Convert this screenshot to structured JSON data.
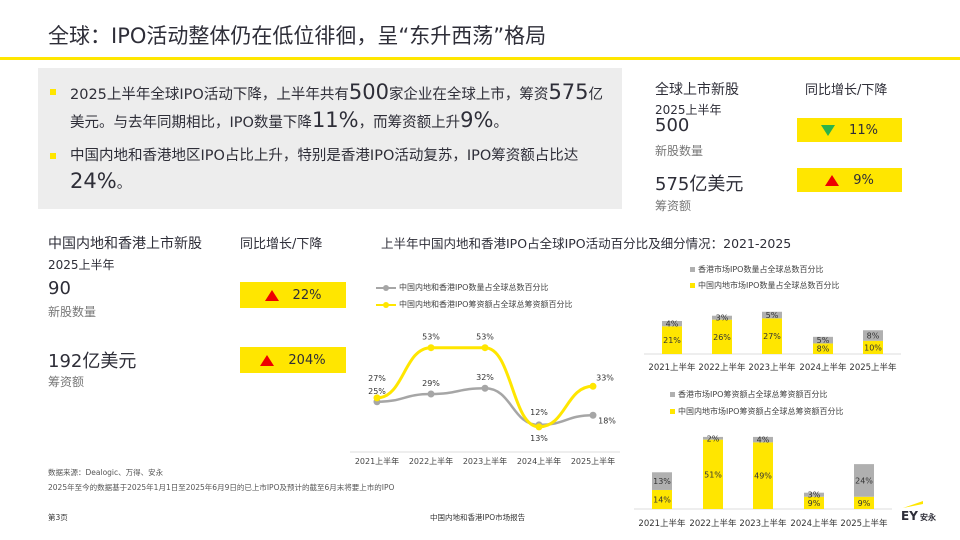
{
  "title": "全球：IPO活动整体仍在低位徘徊，呈“东升西荡”格局",
  "summary": {
    "bullet1_a": "2025上半年全球IPO活动下降，上半年共有",
    "bullet1_n1": "500",
    "bullet1_b": "家企业在全球上市，筹资",
    "bullet1_n2": "575",
    "bullet1_c": "亿美元。与去年同期相比，IPO数量下降",
    "bullet1_n3": "11%",
    "bullet1_d": "，而筹资额上升",
    "bullet1_n4": "9%",
    "bullet1_e": "。",
    "bullet2_a": "中国内地和香港地区IPO占比上升，特别是香港IPO活动复苏，IPO筹资额占比达",
    "bullet2_n": "24%",
    "bullet2_e": "。"
  },
  "global": {
    "heading": "全球上市新股",
    "change_heading": "同比增长/下降",
    "period": "2025上半年",
    "count": "500",
    "count_label": "新股数量",
    "count_change": "11%",
    "count_dir": "down",
    "amount": "575亿美元",
    "amount_label": "筹资额",
    "amount_change": "9%",
    "amount_dir": "up"
  },
  "china": {
    "heading": "中国内地和香港上市新股",
    "change_heading": "同比增长/下降",
    "period": "2025上半年",
    "count": "90",
    "count_label": "新股数量",
    "count_change": "22%",
    "amount": "192亿美元",
    "amount_label": "筹资额",
    "amount_change": "204%"
  },
  "charts_title": "上半年中国内地和香港IPO占全球IPO活动百分比及细分情况：2021-2025",
  "colors": {
    "yellow": "#ffe600",
    "gray": "#a6a6a6",
    "up": "#e00000",
    "down": "#2db34a"
  },
  "chart_data": [
    {
      "type": "line",
      "categories": [
        "2021上半年",
        "2022上半年",
        "2023上半年",
        "2024上半年",
        "2025上半年"
      ],
      "series": [
        {
          "name": "中国内地和香港IPO数量占全球总数百分比",
          "values": [
            25,
            29,
            32,
            13,
            18
          ],
          "color": "#a6a6a6"
        },
        {
          "name": "中国内地和香港IPO筹资额占全球总筹资额百分比",
          "values": [
            27,
            53,
            53,
            12,
            33
          ],
          "color": "#ffe600"
        }
      ],
      "legend": "top"
    },
    {
      "type": "bar",
      "stacked": true,
      "categories": [
        "2021上半年",
        "2022上半年",
        "2023上半年",
        "2024上半年",
        "2025上半年"
      ],
      "series": [
        {
          "name": "中国内地市场IPO数量占全球总数百分比",
          "values": [
            21,
            26,
            27,
            8,
            10
          ],
          "color": "#ffe600"
        },
        {
          "name": "香港市场IPO数量占全球总数百分比",
          "values": [
            4,
            3,
            5,
            5,
            8
          ],
          "color": "#b0b0b0"
        }
      ],
      "legend": "top"
    },
    {
      "type": "bar",
      "stacked": true,
      "categories": [
        "2021上半年",
        "2022上半年",
        "2023上半年",
        "2024上半年",
        "2025上半年"
      ],
      "series": [
        {
          "name": "中国内地市场IPO筹资额占全球总筹资额百分比",
          "values": [
            14,
            51,
            49,
            9,
            9
          ],
          "color": "#ffe600"
        },
        {
          "name": "香港市场IPO筹资额占全球总筹资额百分比",
          "values": [
            13,
            2,
            4,
            3,
            24
          ],
          "color": "#b0b0b0"
        }
      ],
      "legend": "top"
    }
  ],
  "footer": {
    "source": "数据来源：Dealogic、万得、安永",
    "note": "2025年至今的数据基于2025年1月1日至2025年6月9日的已上市IPO及预计的截至6月末将要上市的IPO",
    "page": "第3页",
    "report": "中国内地和香港IPO市场报告",
    "logo": "EY安永"
  }
}
